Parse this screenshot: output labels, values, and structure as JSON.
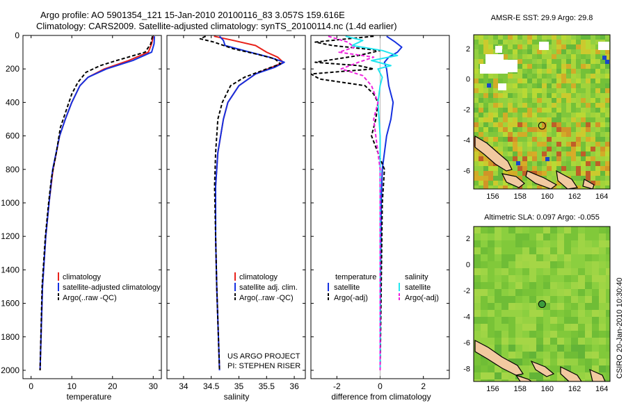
{
  "figure": {
    "title_line1": "Argo profile: AO 5901354_121 15-Jan-2010 20100116_83 3.057S 159.616E",
    "title_line2": "Climatology: CARS2009. Satellite-adjusted climatology: synTS_20100114.nc (1.4d earlier)",
    "credit_project": "US ARGO PROJECT",
    "credit_pi": "PI: STEPHEN RISER",
    "side_stamp": "CSIRO 20-Jan-2010 10:30:40"
  },
  "colors": {
    "climatology": "#e8221b",
    "satellite": "#1530e0",
    "argo": "#000000",
    "salinity_sat": "#22e6f0",
    "salinity_argo": "#ee22dd",
    "map_green": "#7ec83a",
    "land": "#f2c9a0"
  },
  "chart_data": [
    {
      "type": "line",
      "id": "temperature",
      "xlabel": "temperature",
      "ylabel": "",
      "xlim": [
        -2,
        32
      ],
      "ylim": [
        2050,
        0
      ],
      "x_ticks": [
        0,
        10,
        20,
        30
      ],
      "y_ticks": [
        0,
        200,
        400,
        600,
        800,
        1000,
        1200,
        1400,
        1600,
        1800,
        2000
      ],
      "legend": [
        "climatology",
        "satellite-adjusted climatology",
        "Argo(..raw -QC)"
      ],
      "series": [
        {
          "name": "climatology",
          "depth": [
            5,
            50,
            100,
            150,
            200,
            250,
            300,
            400,
            500,
            600,
            800,
            1000,
            1200,
            1500,
            2000
          ],
          "values": [
            30,
            29.6,
            28.8,
            24,
            18,
            14,
            12,
            10,
            8.4,
            7,
            5.4,
            4.4,
            3.6,
            2.8,
            2.2
          ]
        },
        {
          "name": "satellite-adjusted climatology",
          "depth": [
            5,
            50,
            100,
            150,
            200,
            250,
            300,
            400,
            500,
            600,
            800,
            1000,
            1200,
            1500,
            2000
          ],
          "values": [
            30.3,
            30.2,
            29.6,
            25,
            18.5,
            14,
            12,
            10,
            8.4,
            7,
            5.3,
            4.4,
            3.6,
            2.8,
            2.2
          ]
        },
        {
          "name": "Argo(..raw -QC)",
          "depth": [
            5,
            50,
            100,
            150,
            180,
            220,
            280,
            350,
            450,
            550,
            700,
            850,
            1000,
            1200,
            1500,
            2000
          ],
          "values": [
            29.8,
            29.4,
            28,
            21,
            17,
            13.5,
            11.5,
            10,
            8.6,
            7.2,
            6.2,
            5,
            4.3,
            3.5,
            2.7,
            2.2
          ]
        }
      ]
    },
    {
      "type": "line",
      "id": "salinity",
      "xlabel": "salinity",
      "xlim": [
        33.7,
        36.2
      ],
      "ylim": [
        2050,
        0
      ],
      "x_ticks": [
        34,
        34.5,
        35,
        35.5,
        36
      ],
      "legend": [
        "climatology",
        "satellite adj. clim.",
        "Argo(..raw -QC)"
      ],
      "series": [
        {
          "name": "climatology",
          "depth": [
            5,
            30,
            60,
            100,
            130,
            160,
            190,
            230,
            300,
            400,
            500,
            700,
            900,
            1200,
            1500,
            2000
          ],
          "values": [
            34.55,
            34.9,
            35.3,
            35.5,
            35.7,
            35.8,
            35.6,
            35.3,
            35.0,
            34.8,
            34.72,
            34.62,
            34.58,
            34.58,
            34.6,
            34.65
          ]
        },
        {
          "name": "satellite adj. clim.",
          "depth": [
            5,
            30,
            60,
            100,
            130,
            160,
            190,
            230,
            300,
            400,
            500,
            700,
            900,
            1200,
            1500,
            2000
          ],
          "values": [
            34.65,
            34.72,
            34.75,
            35.2,
            35.55,
            35.82,
            35.65,
            35.3,
            35.0,
            34.8,
            34.72,
            34.62,
            34.58,
            34.58,
            34.6,
            34.65
          ]
        },
        {
          "name": "Argo(..raw -QC)",
          "depth": [
            5,
            20,
            40,
            80,
            110,
            140,
            170,
            200,
            250,
            300,
            400,
            500,
            700,
            900,
            1200,
            1500,
            2000
          ],
          "values": [
            34.4,
            34.3,
            34.55,
            34.9,
            35.3,
            35.65,
            35.75,
            35.5,
            35.1,
            34.85,
            34.7,
            34.62,
            34.58,
            34.56,
            34.58,
            34.6,
            34.65
          ]
        }
      ]
    },
    {
      "type": "line",
      "id": "difference",
      "xlabel": "difference from climatology",
      "xlim": [
        -3.2,
        3.2
      ],
      "ylim": [
        2050,
        0
      ],
      "x_ticks": [
        -2,
        0,
        2
      ],
      "legend_headers": [
        "temperature",
        "salinity"
      ],
      "legend": [
        "satellite",
        "Argo(-adj)",
        "satellite",
        "Argo(-adj)"
      ],
      "series": [
        {
          "name": "temperature satellite",
          "depth": [
            5,
            40,
            70,
            100,
            130,
            160,
            200,
            300,
            400,
            500,
            600,
            800,
            1000,
            1500,
            2000
          ],
          "values": [
            0.3,
            0.7,
            1.0,
            0.8,
            0.4,
            0.2,
            0.3,
            0.4,
            0.6,
            0.5,
            0.3,
            0.1,
            0.05,
            0.02,
            0.0
          ]
        },
        {
          "name": "temperature Argo(-adj)",
          "depth": [
            5,
            20,
            40,
            60,
            90,
            120,
            160,
            180,
            200,
            230,
            260,
            300,
            350,
            400,
            500,
            600,
            800,
            1000,
            1500,
            2000
          ],
          "values": [
            -0.3,
            -1.5,
            -3.0,
            -2.2,
            0.0,
            -1.0,
            -3.0,
            -1.0,
            -0.3,
            -3.2,
            -2.8,
            -0.7,
            -0.3,
            -0.1,
            -0.2,
            -0.4,
            0.2,
            0.1,
            0.05,
            0.0
          ]
        },
        {
          "name": "salinity satellite",
          "depth": [
            5,
            30,
            60,
            90,
            120,
            150,
            180,
            200,
            250,
            300,
            400,
            600,
            800,
            1000,
            2000
          ],
          "values": [
            -1.6,
            -0.8,
            -1.3,
            0.1,
            0.8,
            -0.4,
            0.5,
            -0.1,
            0.1,
            0.0,
            -0.1,
            0.0,
            0.0,
            0.0,
            0.0
          ]
        },
        {
          "name": "salinity Argo(-adj)",
          "depth": [
            5,
            40,
            70,
            100,
            130,
            160,
            200,
            240,
            300,
            400,
            500,
            600,
            800,
            1000,
            2000
          ],
          "values": [
            -2.4,
            -1.5,
            -1.2,
            -1.9,
            -0.3,
            -1.0,
            -1.8,
            -0.8,
            -0.4,
            -0.1,
            -0.3,
            -0.2,
            0.0,
            0.0,
            0.0
          ]
        }
      ]
    },
    {
      "type": "heatmap",
      "id": "sst_map",
      "title": "AMSR-E SST: 29.9 Argo: 29.8",
      "xlim": [
        154.6,
        164.6
      ],
      "ylim": [
        -7.2,
        2.9
      ],
      "x_ticks": [
        156,
        158,
        160,
        162,
        164
      ],
      "y_ticks": [
        2,
        0,
        -2,
        -4,
        -6
      ],
      "marker": {
        "lon": 159.616,
        "lat": -3.057,
        "filled": false
      }
    },
    {
      "type": "heatmap",
      "id": "sla_map",
      "title": "Altimetric SLA: 0.097 Argo: -0.055",
      "xlim": [
        154.6,
        164.6
      ],
      "ylim": [
        -9.0,
        2.9
      ],
      "x_ticks": [
        156,
        158,
        160,
        162,
        164
      ],
      "y_ticks": [
        2,
        0,
        -2,
        -4,
        -6,
        -8
      ],
      "marker": {
        "lon": 159.616,
        "lat": -3.057,
        "filled": true
      }
    }
  ]
}
